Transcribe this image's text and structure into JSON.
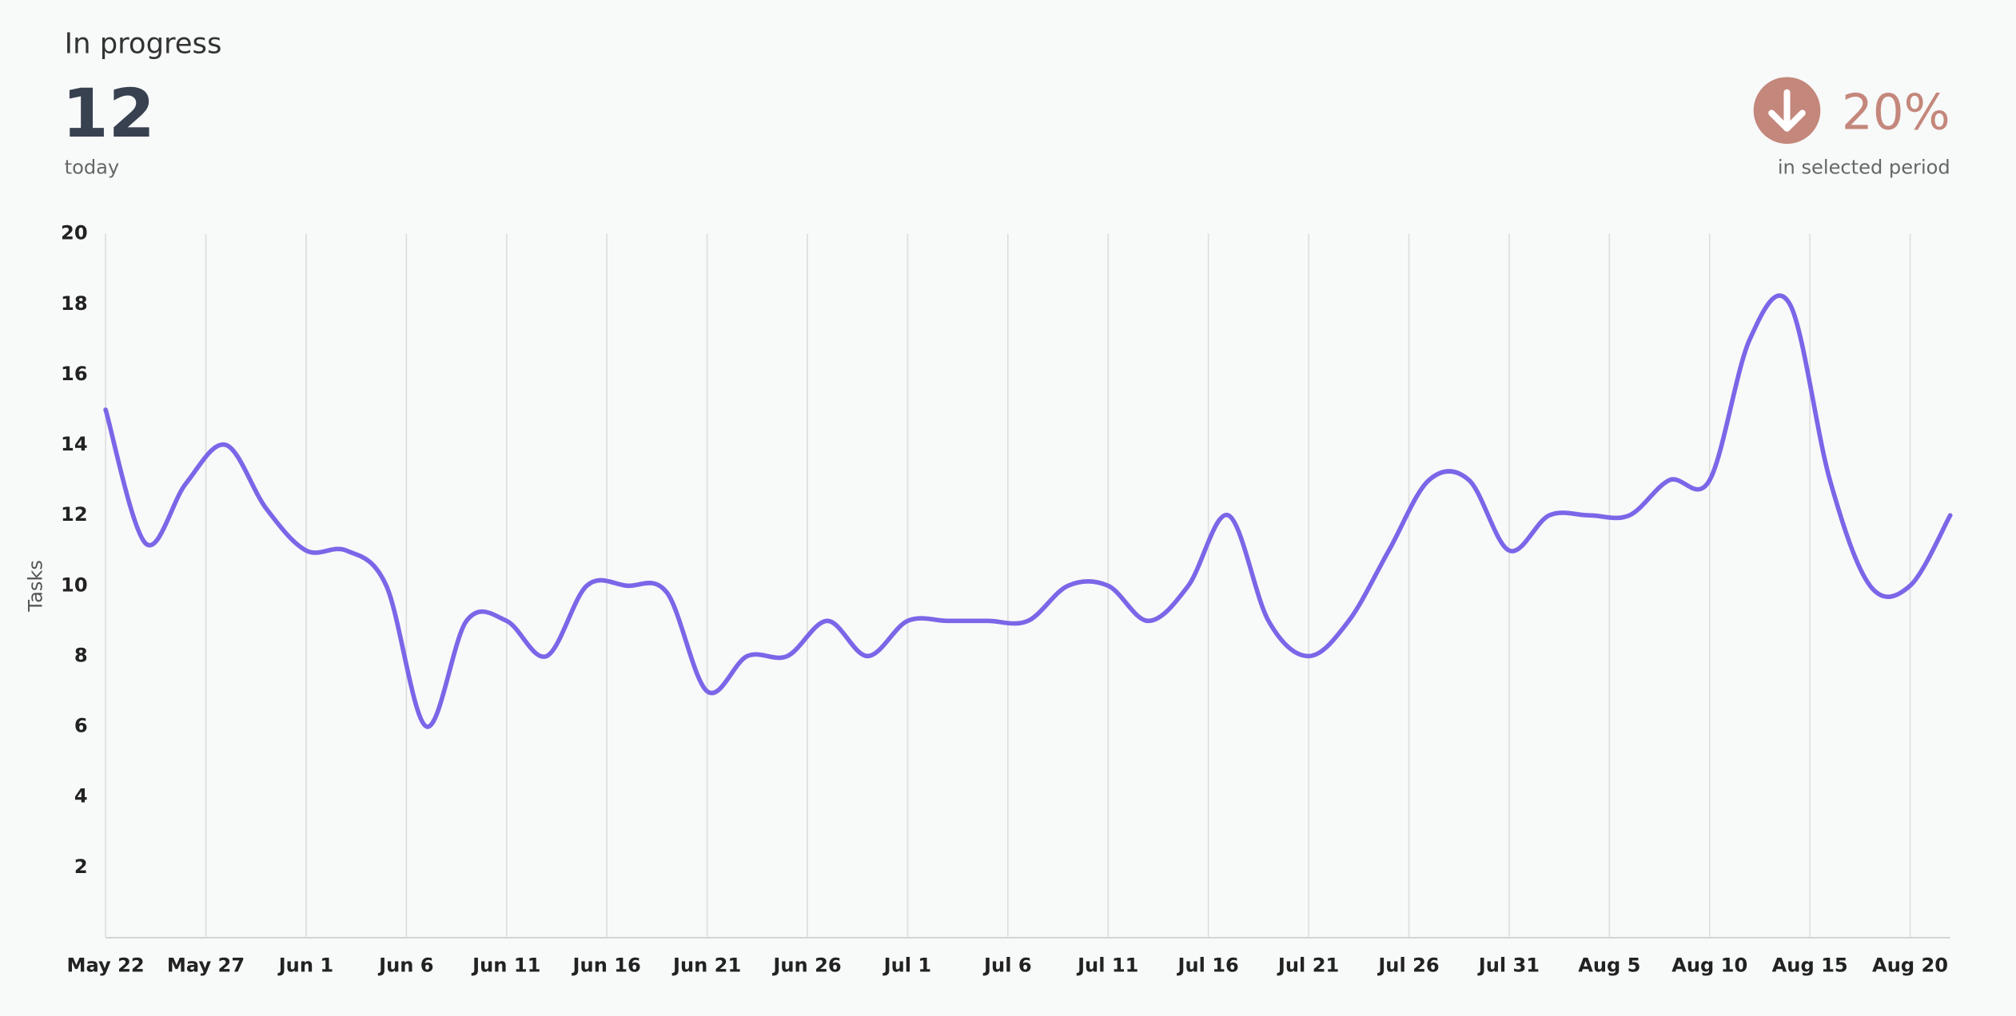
{
  "header": {
    "title": "In progress",
    "value": "12",
    "value_caption": "today",
    "change": "20%",
    "change_caption": "in selected period"
  },
  "chart_data": {
    "type": "line",
    "y_label": "Tasks",
    "x": [
      "May 22",
      "May 24",
      "May 26",
      "May 28",
      "May 30",
      "Jun 1",
      "Jun 3",
      "Jun 5",
      "Jun 7",
      "Jun 9",
      "Jun 11",
      "Jun 13",
      "Jun 15",
      "Jun 17",
      "Jun 19",
      "Jun 21",
      "Jun 23",
      "Jun 25",
      "Jun 27",
      "Jun 29",
      "Jul 1",
      "Jul 3",
      "Jul 5",
      "Jul 7",
      "Jul 9",
      "Jul 11",
      "Jul 13",
      "Jul 15",
      "Jul 17",
      "Jul 19",
      "Jul 21",
      "Jul 23",
      "Jul 25",
      "Jul 27",
      "Jul 29",
      "Jul 31",
      "Aug 2",
      "Aug 4",
      "Aug 6",
      "Aug 8",
      "Aug 10",
      "Aug 12",
      "Aug 14",
      "Aug 16",
      "Aug 18",
      "Aug 20",
      "Aug 22"
    ],
    "series": [
      {
        "name": "Tasks",
        "color": "#7b66e8",
        "values": [
          15,
          11.2,
          12.9,
          14,
          12.2,
          11,
          11,
          10,
          6,
          9,
          9,
          8,
          10,
          10,
          9.8,
          7,
          8,
          8,
          9,
          8,
          9,
          9,
          9,
          9,
          10,
          10,
          9,
          10,
          12,
          9,
          8,
          9,
          11,
          13,
          13,
          11,
          12,
          12,
          12,
          13,
          13,
          17,
          18,
          13,
          10,
          10,
          12
        ]
      }
    ],
    "xlim": [
      "May 22",
      "Aug 22"
    ],
    "xticks": [
      "May 22",
      "May 27",
      "Jun 1",
      "Jun 6",
      "Jun 11",
      "Jun 16",
      "Jun 21",
      "Jun 26",
      "Jul 1",
      "Jul 6",
      "Jul 11",
      "Jul 16",
      "Jul 21",
      "Jul 26",
      "Jul 31",
      "Aug 5",
      "Aug 10",
      "Aug 15",
      "Aug 20"
    ],
    "ylim": [
      0,
      20
    ],
    "yticks": [
      2,
      4,
      6,
      8,
      10,
      12,
      14,
      16,
      18,
      20
    ],
    "grid": true
  }
}
